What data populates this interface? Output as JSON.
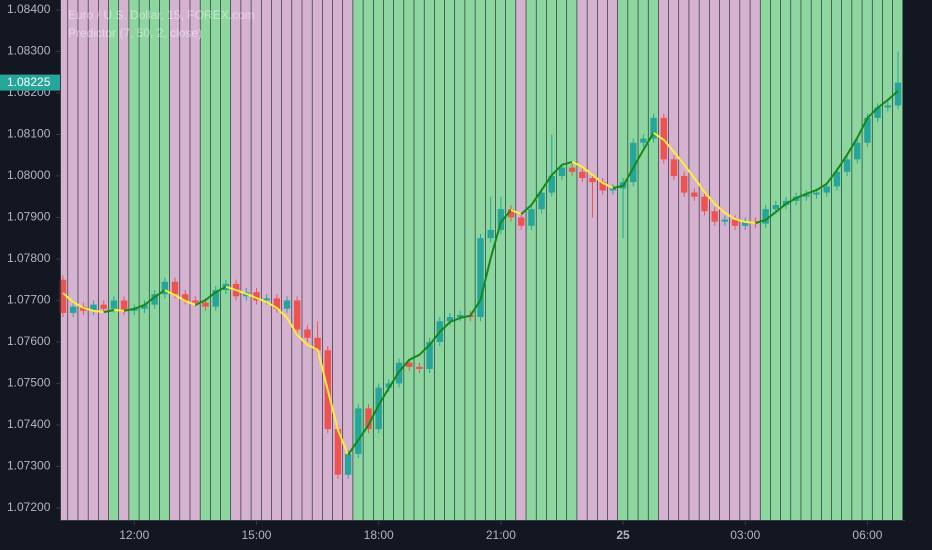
{
  "chart_data": {
    "type": "candlestick",
    "title": "Euro / U.S. Dollar, 15, FOREX.com",
    "subtitle": "Predictor (7, 50, 2, close)",
    "categories": [
      null,
      null,
      null,
      null,
      null,
      null,
      null,
      "12:00",
      null,
      null,
      null,
      null,
      null,
      null,
      null,
      null,
      null,
      null,
      null,
      "15:00",
      null,
      null,
      null,
      null,
      null,
      null,
      null,
      null,
      null,
      null,
      null,
      "18:00",
      null,
      null,
      null,
      null,
      null,
      null,
      null,
      null,
      null,
      null,
      null,
      "21:00",
      null,
      null,
      null,
      null,
      null,
      null,
      null,
      null,
      null,
      null,
      null,
      "25",
      null,
      null,
      null,
      null,
      null,
      null,
      null,
      null,
      null,
      null,
      null,
      "03:00",
      null,
      null,
      null,
      null,
      null,
      null,
      null,
      null,
      null,
      null,
      null,
      "06:00",
      null,
      null,
      null
    ],
    "open": [
      1.0775,
      1.0767,
      1.07685,
      1.07675,
      1.0769,
      1.0768,
      1.077,
      1.07675,
      1.0768,
      1.0769,
      1.07715,
      1.07745,
      1.07715,
      1.077,
      1.07695,
      1.07685,
      1.07725,
      1.0774,
      1.0771,
      1.0772,
      1.077,
      1.07705,
      1.0768,
      1.077,
      1.0763,
      1.0761,
      1.0758,
      1.0739,
      1.0728,
      1.0733,
      1.0744,
      1.0739,
      1.0749,
      1.075,
      1.0755,
      1.0754,
      1.07535,
      1.076,
      1.0765,
      1.0766,
      1.07665,
      1.0766,
      1.0785,
      1.0787,
      1.0792,
      1.079,
      1.0788,
      1.0792,
      1.0796,
      1.08,
      1.0802,
      1.0801,
      1.07995,
      1.07985,
      1.07965,
      1.0797,
      1.07985,
      1.0808,
      1.0809,
      1.0814,
      1.0804,
      1.08,
      1.0796,
      1.0795,
      1.07915,
      1.0789,
      1.07895,
      1.0788,
      1.0789,
      1.07885,
      1.0792,
      1.0793,
      1.0794,
      1.0795,
      1.07955,
      1.0796,
      1.07975,
      1.0801,
      1.0804,
      1.0808,
      1.0814,
      1.08165,
      1.0817
    ],
    "high": [
      1.0776,
      1.07695,
      1.07695,
      1.077,
      1.077,
      1.0771,
      1.0771,
      1.0769,
      1.077,
      1.07725,
      1.07755,
      1.07755,
      1.07725,
      1.0771,
      1.07705,
      1.07735,
      1.0775,
      1.0775,
      1.0773,
      1.0773,
      1.07715,
      1.07715,
      1.0771,
      1.0771,
      1.0764,
      1.0765,
      1.0759,
      1.074,
      1.0734,
      1.0745,
      1.0745,
      1.075,
      1.0751,
      1.0756,
      1.0756,
      1.0755,
      1.0761,
      1.0766,
      1.0767,
      1.07675,
      1.07675,
      1.0786,
      1.0795,
      1.0795,
      1.0793,
      1.0791,
      1.0793,
      1.0797,
      1.081,
      1.0803,
      1.0803,
      1.0802,
      1.08005,
      1.07995,
      1.0798,
      1.07995,
      1.0809,
      1.081,
      1.0815,
      1.0815,
      1.0805,
      1.0801,
      1.0797,
      1.0796,
      1.07925,
      1.07905,
      1.07905,
      1.079,
      1.079,
      1.0793,
      1.0794,
      1.0795,
      1.0796,
      1.07965,
      1.0797,
      1.07985,
      1.0802,
      1.0805,
      1.0809,
      1.0815,
      1.08175,
      1.0818,
      1.083
    ],
    "low": [
      1.0766,
      1.0766,
      1.07665,
      1.07665,
      1.0767,
      1.0767,
      1.07665,
      1.07665,
      1.0767,
      1.0768,
      1.07705,
      1.07705,
      1.0769,
      1.07685,
      1.07675,
      1.07675,
      1.07715,
      1.077,
      1.077,
      1.0769,
      1.0769,
      1.0767,
      1.0767,
      1.0762,
      1.076,
      1.0757,
      1.0738,
      1.0727,
      1.0727,
      1.0732,
      1.0738,
      1.0738,
      1.0748,
      1.0749,
      1.0753,
      1.07525,
      1.07525,
      1.0759,
      1.0764,
      1.0765,
      1.0765,
      1.0765,
      1.0784,
      1.0786,
      1.0789,
      1.0787,
      1.0787,
      1.0791,
      1.0795,
      1.0799,
      1.08,
      1.07985,
      1.079,
      1.07955,
      1.07955,
      1.0785,
      1.07975,
      1.0807,
      1.0808,
      1.0803,
      1.0799,
      1.0795,
      1.0794,
      1.07905,
      1.0788,
      1.0788,
      1.0787,
      1.0787,
      1.07875,
      1.07875,
      1.0791,
      1.0792,
      1.0793,
      1.0794,
      1.07945,
      1.0795,
      1.07965,
      1.08,
      1.0803,
      1.0807,
      1.0813,
      1.08155,
      1.0816
    ],
    "close": [
      1.0767,
      1.07685,
      1.07675,
      1.0769,
      1.0768,
      1.077,
      1.07675,
      1.0768,
      1.0769,
      1.07715,
      1.07745,
      1.07715,
      1.077,
      1.07695,
      1.07685,
      1.07725,
      1.0774,
      1.0771,
      1.0772,
      1.077,
      1.07705,
      1.0768,
      1.077,
      1.0763,
      1.0761,
      1.0758,
      1.0739,
      1.0728,
      1.0733,
      1.0744,
      1.0739,
      1.0749,
      1.075,
      1.0755,
      1.0754,
      1.07535,
      1.076,
      1.0765,
      1.0766,
      1.07665,
      1.0766,
      1.0785,
      1.0787,
      1.0792,
      1.079,
      1.0788,
      1.0792,
      1.0796,
      1.08,
      1.0802,
      1.0801,
      1.07995,
      1.07985,
      1.07965,
      1.0797,
      1.07985,
      1.0808,
      1.0809,
      1.0814,
      1.0804,
      1.08,
      1.0796,
      1.0795,
      1.07915,
      1.0789,
      1.07895,
      1.0788,
      1.0789,
      1.07885,
      1.0792,
      1.0793,
      1.0794,
      1.0795,
      1.07955,
      1.0796,
      1.07975,
      1.0801,
      1.0804,
      1.0808,
      1.0814,
      1.08165,
      1.0817,
      1.08225
    ],
    "up_color": "#26a69a",
    "down_color": "#ef5350",
    "predictor": {
      "values": [
        1.07718,
        1.07696,
        1.07682,
        1.07675,
        1.07672,
        1.07677,
        1.07675,
        1.0768,
        1.07689,
        1.07708,
        1.07725,
        1.07713,
        1.07699,
        1.07689,
        1.07701,
        1.0772,
        1.07733,
        1.07725,
        1.07716,
        1.07706,
        1.07696,
        1.07682,
        1.07658,
        1.07617,
        1.07593,
        1.07581,
        1.07484,
        1.07388,
        1.07328,
        1.07364,
        1.074,
        1.07448,
        1.07489,
        1.07528,
        1.07557,
        1.07569,
        1.07593,
        1.07624,
        1.07648,
        1.07658,
        1.07663,
        1.07701,
        1.07802,
        1.07889,
        1.07918,
        1.07908,
        1.0793,
        1.07966,
        1.08002,
        1.08027,
        1.08034,
        1.08022,
        1.08002,
        1.07983,
        1.07971,
        1.07976,
        1.08019,
        1.08063,
        1.08104,
        1.08087,
        1.08058,
        1.08027,
        1.07995,
        1.07961,
        1.07933,
        1.07911,
        1.07896,
        1.07889,
        1.07887,
        1.07894,
        1.07913,
        1.07933,
        1.07947,
        1.07957,
        1.07966,
        1.07981,
        1.08014,
        1.08051,
        1.08092,
        1.0814,
        1.08164,
        1.08183,
        1.08205
      ],
      "up_color": "#138a17",
      "down_color": "#ffeb3b",
      "up_background": "#8ed6a0",
      "down_background": "#d5b3d0"
    },
    "last_price": {
      "value": 1.08225,
      "label": "1.08225"
    },
    "ylim": [
      1.07171,
      1.08424
    ],
    "yticks": [
      {
        "value": 1.072,
        "label": "1.07200"
      },
      {
        "value": 1.073,
        "label": "1.07300"
      },
      {
        "value": 1.074,
        "label": "1.07400"
      },
      {
        "value": 1.075,
        "label": "1.07500"
      },
      {
        "value": 1.076,
        "label": "1.07600"
      },
      {
        "value": 1.077,
        "label": "1.07700"
      },
      {
        "value": 1.078,
        "label": "1.07800"
      },
      {
        "value": 1.079,
        "label": "1.07900"
      },
      {
        "value": 1.08,
        "label": "1.08000"
      },
      {
        "value": 1.081,
        "label": "1.08100"
      },
      {
        "value": 1.082,
        "label": "1.08200"
      },
      {
        "value": 1.083,
        "label": "1.08300"
      },
      {
        "value": 1.084,
        "label": "1.08400"
      }
    ]
  }
}
